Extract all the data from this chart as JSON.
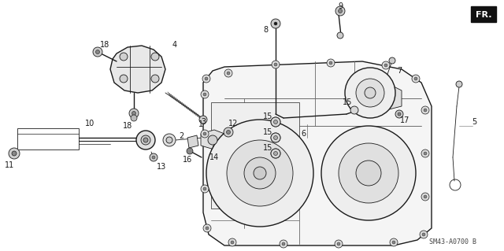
{
  "background_color": "#ffffff",
  "line_color": "#1a1a1a",
  "label_color": "#1a1a1a",
  "font_size": 7,
  "watermark_text": "SM43-A0700 B",
  "fr_label": "FR.",
  "fig_width": 6.4,
  "fig_height": 3.19,
  "dpi": 100
}
